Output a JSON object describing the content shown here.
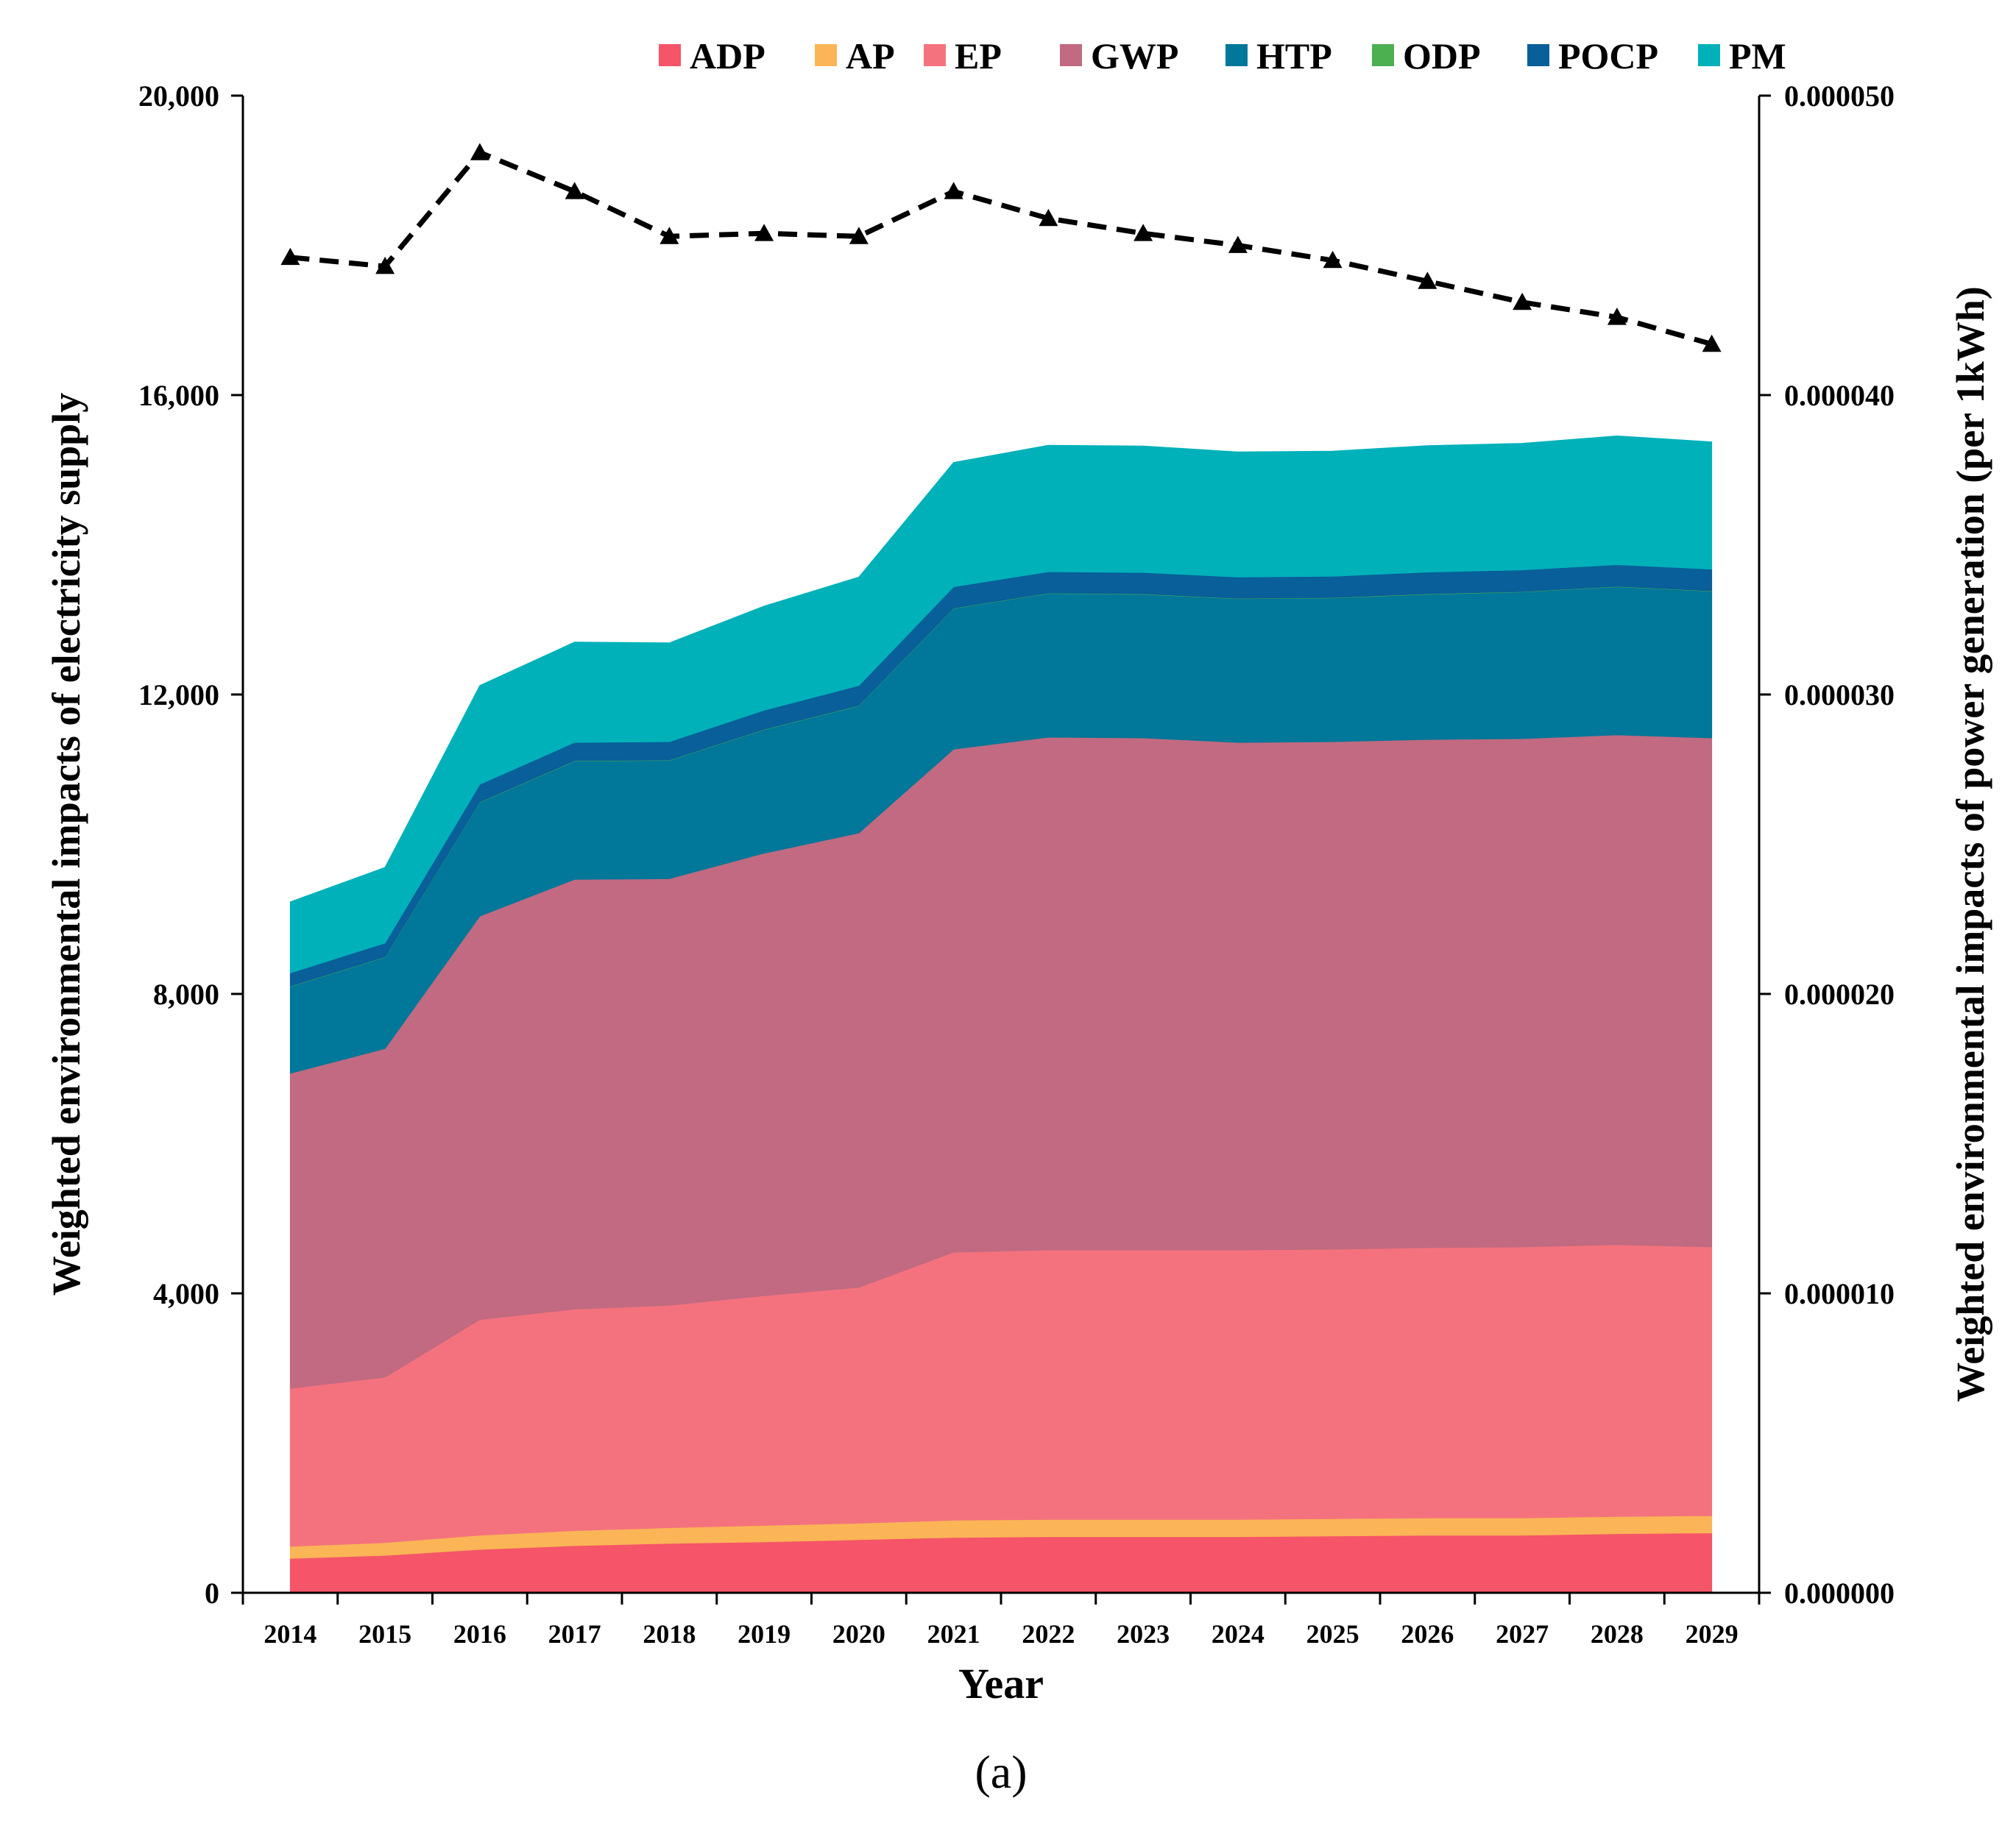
{
  "chart_data": {
    "type": "area",
    "stacked": true,
    "panel_label": "(a)",
    "xlabel": "Year",
    "ylabel": "Weighted environmental impacts of electricity supply",
    "y2label": "Weighted environmental impacts of power generation (per 1kWh)",
    "ylim": [
      0,
      20000
    ],
    "y2lim": [
      0,
      5e-05
    ],
    "categories": [
      "2014",
      "2015",
      "2016",
      "2017",
      "2018",
      "2019",
      "2020",
      "2021",
      "2022",
      "2023",
      "2024",
      "2025",
      "2026",
      "2027",
      "2028",
      "2029"
    ],
    "y_ticks": [
      0,
      4000,
      8000,
      12000,
      16000,
      20000
    ],
    "y_tick_labels": [
      "0",
      "4,000",
      "8,000",
      "12,000",
      "16,000",
      "20,000"
    ],
    "y2_ticks": [
      0,
      1e-05,
      2e-05,
      3e-05,
      4e-05,
      5e-05
    ],
    "y2_tick_labels": [
      "0.000000",
      "0.000010",
      "0.000020",
      "0.000030",
      "0.000040",
      "0.000050"
    ],
    "legend_position": "top",
    "series": [
      {
        "name": "ADP",
        "color": "#F65468",
        "values": [
          460,
          500,
          580,
          630,
          660,
          680,
          710,
          740,
          750,
          750,
          750,
          760,
          770,
          770,
          790,
          800
        ]
      },
      {
        "name": "AP",
        "color": "#FBB556",
        "values": [
          160,
          170,
          190,
          200,
          210,
          220,
          220,
          230,
          230,
          230,
          230,
          230,
          230,
          230,
          230,
          230
        ]
      },
      {
        "name": "EP",
        "color": "#F4727E",
        "values": [
          2110,
          2210,
          2880,
          2960,
          2970,
          3070,
          3150,
          3580,
          3600,
          3600,
          3600,
          3600,
          3610,
          3620,
          3630,
          3590
        ]
      },
      {
        "name": "GWP",
        "color": "#C16A81",
        "values": [
          4210,
          4390,
          5390,
          5740,
          5700,
          5910,
          6070,
          6720,
          6850,
          6840,
          6780,
          6780,
          6790,
          6790,
          6810,
          6800
        ]
      },
      {
        "name": "HTP",
        "color": "#017799",
        "values": [
          1160,
          1220,
          1520,
          1580,
          1580,
          1650,
          1700,
          1880,
          1920,
          1920,
          1920,
          1920,
          1940,
          1960,
          1980,
          1960
        ]
      },
      {
        "name": "ODP",
        "color": "#4CAF50",
        "values": [
          5,
          5,
          5,
          5,
          5,
          5,
          5,
          5,
          5,
          5,
          5,
          5,
          5,
          5,
          5,
          5
        ]
      },
      {
        "name": "POCP",
        "color": "#085F99",
        "values": [
          175,
          185,
          235,
          245,
          245,
          255,
          265,
          285,
          285,
          285,
          285,
          285,
          290,
          290,
          290,
          290
        ]
      },
      {
        "name": "PM",
        "color": "#01B1BA",
        "values": [
          950,
          1010,
          1320,
          1340,
          1320,
          1390,
          1450,
          1660,
          1690,
          1690,
          1670,
          1670,
          1690,
          1690,
          1720,
          1700
        ]
      }
    ],
    "line_series": {
      "name": "per 1kWh",
      "axis": "y2",
      "style": "dashed",
      "marker": "triangle",
      "color": "#000000",
      "values": [
        4.46e-05,
        4.43e-05,
        4.81e-05,
        4.68e-05,
        4.53e-05,
        4.54e-05,
        4.53e-05,
        4.68e-05,
        4.59e-05,
        4.54e-05,
        4.5e-05,
        4.45e-05,
        4.38e-05,
        4.31e-05,
        4.26e-05,
        4.17e-05
      ]
    }
  }
}
